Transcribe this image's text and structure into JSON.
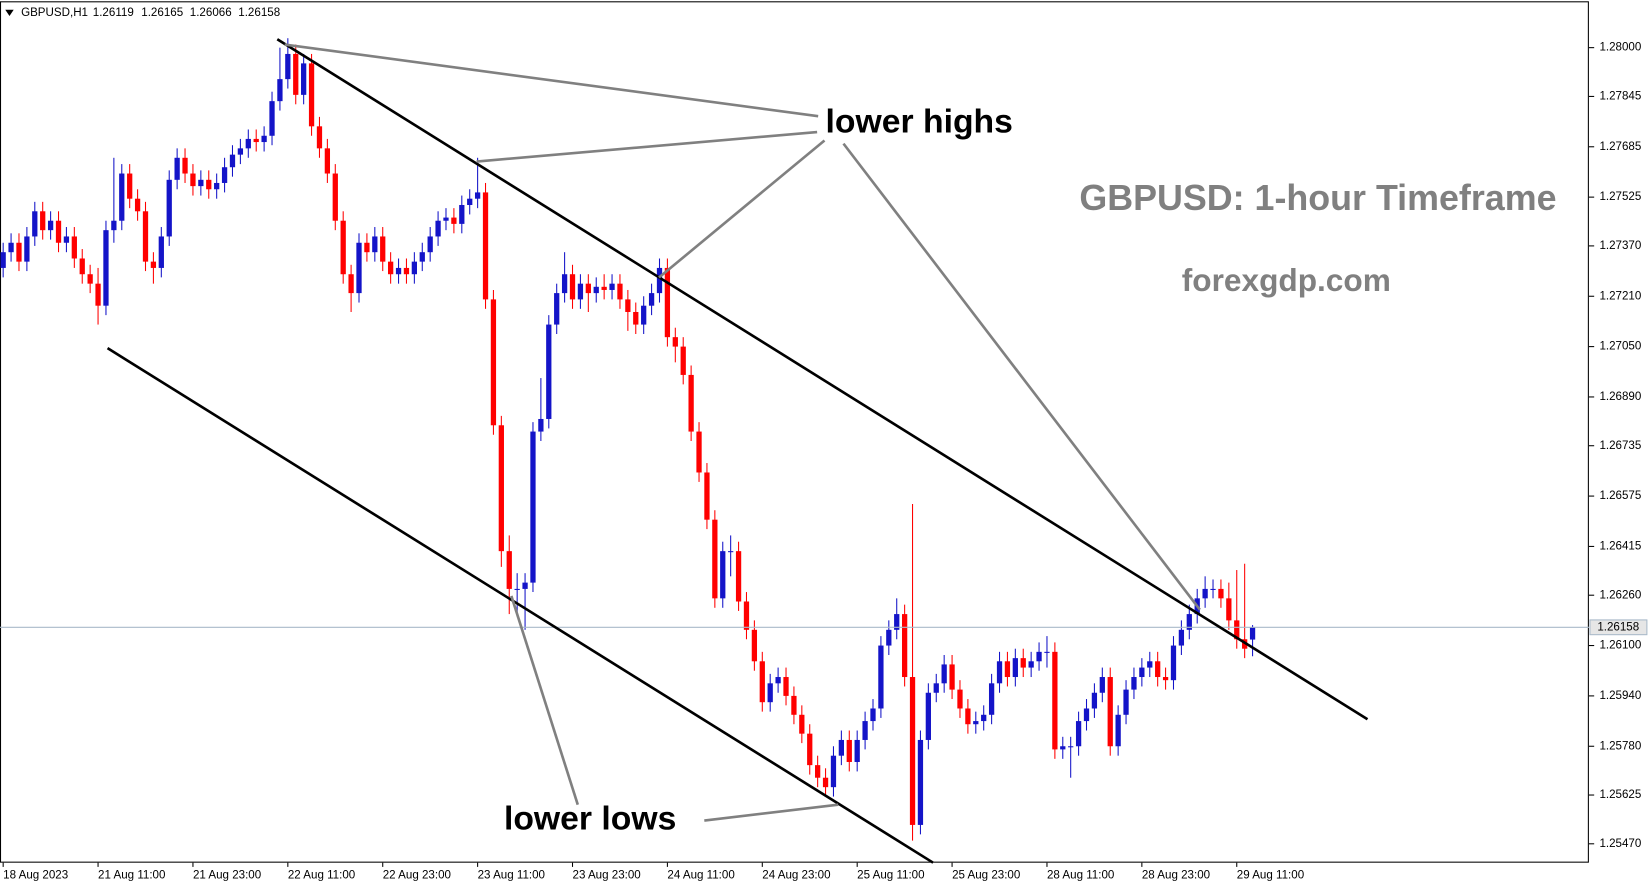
{
  "chart_data": {
    "type": "candlestick",
    "header_symbol": "GBPUSD,H1",
    "title": "GBPUSD: 1-hour Timeframe",
    "subtitle": "forexgdp.com",
    "annotations": [
      "lower highs",
      "lower lows"
    ],
    "up_color": "#1414c8",
    "down_color": "#ff0000",
    "last_price_color": "#a9b9c9",
    "ylim": [
      1.2541,
      1.28144
    ],
    "yticks": [
      {
        "value": 1.28,
        "label": "1.28000"
      },
      {
        "value": 1.27845,
        "label": "1.27845"
      },
      {
        "value": 1.27685,
        "label": "1.27685"
      },
      {
        "value": 1.27525,
        "label": "1.27525"
      },
      {
        "value": 1.2737,
        "label": "1.27370"
      },
      {
        "value": 1.2721,
        "label": "1.27210"
      },
      {
        "value": 1.2705,
        "label": "1.27050"
      },
      {
        "value": 1.2689,
        "label": "1.26890"
      },
      {
        "value": 1.26735,
        "label": "1.26735"
      },
      {
        "value": 1.26575,
        "label": "1.26575"
      },
      {
        "value": 1.26415,
        "label": "1.26415"
      },
      {
        "value": 1.2626,
        "label": "1.26260"
      },
      {
        "value": 1.261,
        "label": "1.26100"
      },
      {
        "value": 1.2594,
        "label": "1.25940"
      },
      {
        "value": 1.2578,
        "label": "1.25780"
      },
      {
        "value": 1.25625,
        "label": "1.25625"
      },
      {
        "value": 1.2547,
        "label": "1.25470"
      }
    ],
    "categories": [
      "18 Aug 2023",
      null,
      null,
      null,
      null,
      null,
      null,
      null,
      null,
      null,
      null,
      null,
      "21 Aug 11:00",
      null,
      null,
      null,
      null,
      null,
      null,
      null,
      null,
      null,
      null,
      null,
      "21 Aug 23:00",
      null,
      null,
      null,
      null,
      null,
      null,
      null,
      null,
      null,
      null,
      null,
      "22 Aug 11:00",
      null,
      null,
      null,
      null,
      null,
      null,
      null,
      null,
      null,
      null,
      null,
      "22 Aug 23:00",
      null,
      null,
      null,
      null,
      null,
      null,
      null,
      null,
      null,
      null,
      null,
      "23 Aug 11:00",
      null,
      null,
      null,
      null,
      null,
      null,
      null,
      null,
      null,
      null,
      null,
      "23 Aug 23:00",
      null,
      null,
      null,
      null,
      null,
      null,
      null,
      null,
      null,
      null,
      null,
      "24 Aug 11:00",
      null,
      null,
      null,
      null,
      null,
      null,
      null,
      null,
      null,
      null,
      null,
      "24 Aug 23:00",
      null,
      null,
      null,
      null,
      null,
      null,
      null,
      null,
      null,
      null,
      null,
      "25 Aug 11:00",
      null,
      null,
      null,
      null,
      null,
      null,
      null,
      null,
      null,
      null,
      null,
      "25 Aug 23:00",
      null,
      null,
      null,
      null,
      null,
      null,
      null,
      null,
      null,
      null,
      null,
      "28 Aug 11:00",
      null,
      null,
      null,
      null,
      null,
      null,
      null,
      null,
      null,
      null,
      null,
      "28 Aug 23:00",
      null,
      null,
      null,
      null,
      null,
      null,
      null,
      null,
      null,
      null,
      null,
      "29 Aug 11:00",
      null,
      null
    ],
    "ohlc": [
      [
        1.273,
        1.2738,
        1.2727,
        1.2735
      ],
      [
        1.2735,
        1.2741,
        1.2732,
        1.2738
      ],
      [
        1.2738,
        1.2741,
        1.2729,
        1.2732
      ],
      [
        1.2732,
        1.2743,
        1.2729,
        1.274
      ],
      [
        1.274,
        1.2751,
        1.2737,
        1.2748
      ],
      [
        1.2748,
        1.2751,
        1.2739,
        1.2742
      ],
      [
        1.2742,
        1.2748,
        1.2739,
        1.2745
      ],
      [
        1.2745,
        1.2748,
        1.2735,
        1.2738
      ],
      [
        1.2738,
        1.2743,
        1.2735,
        1.274
      ],
      [
        1.274,
        1.2743,
        1.273,
        1.2733
      ],
      [
        1.2733,
        1.2736,
        1.2725,
        1.2728
      ],
      [
        1.2728,
        1.2731,
        1.2722,
        1.2725
      ],
      [
        1.2725,
        1.273,
        1.2712,
        1.2718
      ],
      [
        1.2718,
        1.2745,
        1.2715,
        1.2742
      ],
      [
        1.2742,
        1.2765,
        1.2738,
        1.2745
      ],
      [
        1.2745,
        1.2763,
        1.2742,
        1.276
      ],
      [
        1.276,
        1.2763,
        1.2749,
        1.2752
      ],
      [
        1.2752,
        1.2755,
        1.2745,
        1.2748
      ],
      [
        1.2748,
        1.2751,
        1.2729,
        1.2732
      ],
      [
        1.2732,
        1.2735,
        1.2725,
        1.273
      ],
      [
        1.273,
        1.2743,
        1.2727,
        1.274
      ],
      [
        1.274,
        1.2761,
        1.2737,
        1.2758
      ],
      [
        1.2758,
        1.2768,
        1.2755,
        1.2765
      ],
      [
        1.2765,
        1.2768,
        1.2757,
        1.276
      ],
      [
        1.276,
        1.2763,
        1.2753,
        1.2756
      ],
      [
        1.2756,
        1.2761,
        1.2753,
        1.2758
      ],
      [
        1.2758,
        1.2761,
        1.2752,
        1.2755
      ],
      [
        1.2755,
        1.276,
        1.2752,
        1.2757
      ],
      [
        1.2757,
        1.2765,
        1.2754,
        1.2762
      ],
      [
        1.2762,
        1.2769,
        1.2759,
        1.2766
      ],
      [
        1.2766,
        1.2771,
        1.2763,
        1.2768
      ],
      [
        1.2768,
        1.2774,
        1.2765,
        1.2771
      ],
      [
        1.2771,
        1.2774,
        1.2767,
        1.277
      ],
      [
        1.277,
        1.2775,
        1.2767,
        1.2772
      ],
      [
        1.2772,
        1.2786,
        1.2769,
        1.2783
      ],
      [
        1.2783,
        1.28,
        1.278,
        1.279
      ],
      [
        1.279,
        1.2803,
        1.2787,
        1.2798
      ],
      [
        1.2798,
        1.2801,
        1.2782,
        1.2785
      ],
      [
        1.2785,
        1.2798,
        1.2782,
        1.2795
      ],
      [
        1.2795,
        1.2798,
        1.2772,
        1.2775
      ],
      [
        1.2775,
        1.2778,
        1.2765,
        1.2768
      ],
      [
        1.2768,
        1.2771,
        1.2757,
        1.276
      ],
      [
        1.276,
        1.2763,
        1.2742,
        1.2745
      ],
      [
        1.2745,
        1.2748,
        1.2725,
        1.2728
      ],
      [
        1.2728,
        1.2731,
        1.2716,
        1.2722
      ],
      [
        1.2722,
        1.2741,
        1.2719,
        1.2738
      ],
      [
        1.2738,
        1.2741,
        1.2732,
        1.2735
      ],
      [
        1.2735,
        1.2743,
        1.2732,
        1.274
      ],
      [
        1.274,
        1.2743,
        1.2729,
        1.2732
      ],
      [
        1.2732,
        1.2735,
        1.2725,
        1.2728
      ],
      [
        1.2728,
        1.2733,
        1.2725,
        1.273
      ],
      [
        1.273,
        1.2733,
        1.2725,
        1.2728
      ],
      [
        1.2728,
        1.2735,
        1.2725,
        1.2732
      ],
      [
        1.2732,
        1.2738,
        1.2729,
        1.2735
      ],
      [
        1.2735,
        1.2743,
        1.2732,
        1.274
      ],
      [
        1.274,
        1.2748,
        1.2737,
        1.2745
      ],
      [
        1.2745,
        1.2749,
        1.2742,
        1.2746
      ],
      [
        1.2746,
        1.2749,
        1.2741,
        1.2744
      ],
      [
        1.2744,
        1.2753,
        1.2741,
        1.275
      ],
      [
        1.275,
        1.2755,
        1.2747,
        1.2752
      ],
      [
        1.2752,
        1.2765,
        1.2749,
        1.2754
      ],
      [
        1.2754,
        1.2757,
        1.2717,
        1.272
      ],
      [
        1.272,
        1.2723,
        1.2677,
        1.268
      ],
      [
        1.268,
        1.2683,
        1.2635,
        1.264
      ],
      [
        1.264,
        1.2645,
        1.262,
        1.2628
      ],
      [
        1.2628,
        1.2633,
        1.262,
        1.2628
      ],
      [
        1.2628,
        1.2633,
        1.2615,
        1.263
      ],
      [
        1.263,
        1.2681,
        1.2627,
        1.2678
      ],
      [
        1.2678,
        1.2695,
        1.2675,
        1.2682
      ],
      [
        1.2682,
        1.2715,
        1.2679,
        1.2712
      ],
      [
        1.2712,
        1.2725,
        1.2709,
        1.2722
      ],
      [
        1.2722,
        1.2735,
        1.2719,
        1.2728
      ],
      [
        1.2728,
        1.2731,
        1.2717,
        1.272
      ],
      [
        1.272,
        1.2728,
        1.2717,
        1.2725
      ],
      [
        1.2725,
        1.2728,
        1.2716,
        1.2722
      ],
      [
        1.2722,
        1.2727,
        1.2719,
        1.2724
      ],
      [
        1.2724,
        1.2728,
        1.272,
        1.2723
      ],
      [
        1.2723,
        1.2728,
        1.272,
        1.2725
      ],
      [
        1.2725,
        1.2728,
        1.2717,
        1.272
      ],
      [
        1.272,
        1.2723,
        1.271,
        1.2716
      ],
      [
        1.2716,
        1.2719,
        1.2709,
        1.2712
      ],
      [
        1.2712,
        1.2721,
        1.2709,
        1.2718
      ],
      [
        1.2718,
        1.2725,
        1.2715,
        1.2722
      ],
      [
        1.2722,
        1.2733,
        1.2719,
        1.273
      ],
      [
        1.273,
        1.2733,
        1.2705,
        1.2708
      ],
      [
        1.2708,
        1.2711,
        1.27,
        1.2705
      ],
      [
        1.2705,
        1.2708,
        1.2693,
        1.2696
      ],
      [
        1.2696,
        1.2699,
        1.2675,
        1.2678
      ],
      [
        1.2678,
        1.2681,
        1.2662,
        1.2665
      ],
      [
        1.2665,
        1.2668,
        1.2647,
        1.265
      ],
      [
        1.265,
        1.2653,
        1.2622,
        1.2625
      ],
      [
        1.2625,
        1.2643,
        1.2622,
        1.264
      ],
      [
        1.264,
        1.2645,
        1.2632,
        1.264
      ],
      [
        1.264,
        1.2643,
        1.2621,
        1.2624
      ],
      [
        1.2624,
        1.2627,
        1.2612,
        1.2615
      ],
      [
        1.2615,
        1.2618,
        1.2602,
        1.2605
      ],
      [
        1.2605,
        1.2608,
        1.2589,
        1.2592
      ],
      [
        1.2592,
        1.2601,
        1.2589,
        1.2598
      ],
      [
        1.2598,
        1.2603,
        1.2595,
        1.26
      ],
      [
        1.26,
        1.2603,
        1.2591,
        1.2594
      ],
      [
        1.2594,
        1.2597,
        1.2585,
        1.2588
      ],
      [
        1.2588,
        1.2591,
        1.2579,
        1.2582
      ],
      [
        1.2582,
        1.2585,
        1.2569,
        1.2572
      ],
      [
        1.2572,
        1.2575,
        1.2565,
        1.2568
      ],
      [
        1.2568,
        1.2571,
        1.2562,
        1.2565
      ],
      [
        1.2565,
        1.2578,
        1.2562,
        1.2575
      ],
      [
        1.2575,
        1.2583,
        1.2572,
        1.258
      ],
      [
        1.258,
        1.2583,
        1.257,
        1.2573
      ],
      [
        1.2573,
        1.2583,
        1.257,
        1.258
      ],
      [
        1.258,
        1.2589,
        1.2577,
        1.2586
      ],
      [
        1.2586,
        1.2593,
        1.2583,
        1.259
      ],
      [
        1.259,
        1.2613,
        1.2587,
        1.261
      ],
      [
        1.261,
        1.2618,
        1.2607,
        1.2615
      ],
      [
        1.2615,
        1.2625,
        1.2612,
        1.262
      ],
      [
        1.262,
        1.2623,
        1.2597,
        1.26
      ],
      [
        1.26,
        1.2655,
        1.2548,
        1.2553
      ],
      [
        1.2553,
        1.2583,
        1.255,
        1.258
      ],
      [
        1.258,
        1.2598,
        1.2577,
        1.2595
      ],
      [
        1.2595,
        1.2601,
        1.2592,
        1.2598
      ],
      [
        1.2598,
        1.2607,
        1.2595,
        1.2604
      ],
      [
        1.2604,
        1.2607,
        1.2593,
        1.2596
      ],
      [
        1.2596,
        1.2599,
        1.2587,
        1.259
      ],
      [
        1.259,
        1.2593,
        1.2582,
        1.2585
      ],
      [
        1.2585,
        1.2589,
        1.2582,
        1.2586
      ],
      [
        1.2586,
        1.2591,
        1.2583,
        1.2588
      ],
      [
        1.2588,
        1.2601,
        1.2585,
        1.2598
      ],
      [
        1.2598,
        1.2608,
        1.2595,
        1.2605
      ],
      [
        1.2605,
        1.2608,
        1.2597,
        1.26
      ],
      [
        1.26,
        1.2609,
        1.2597,
        1.2606
      ],
      [
        1.2606,
        1.2609,
        1.26,
        1.2603
      ],
      [
        1.2603,
        1.2608,
        1.26,
        1.2605
      ],
      [
        1.2605,
        1.2611,
        1.2602,
        1.2608
      ],
      [
        1.2608,
        1.2613,
        1.2603,
        1.2608
      ],
      [
        1.2608,
        1.2611,
        1.2574,
        1.2577
      ],
      [
        1.2577,
        1.2581,
        1.2574,
        1.2578
      ],
      [
        1.2578,
        1.2581,
        1.2568,
        1.2578
      ],
      [
        1.2578,
        1.2589,
        1.2575,
        1.2586
      ],
      [
        1.2586,
        1.2593,
        1.2583,
        1.259
      ],
      [
        1.259,
        1.2598,
        1.2587,
        1.2595
      ],
      [
        1.2595,
        1.2603,
        1.2592,
        1.26
      ],
      [
        1.26,
        1.2603,
        1.2575,
        1.2578
      ],
      [
        1.2578,
        1.2591,
        1.2575,
        1.2588
      ],
      [
        1.2588,
        1.2599,
        1.2585,
        1.2596
      ],
      [
        1.2596,
        1.2603,
        1.2593,
        1.26
      ],
      [
        1.26,
        1.2606,
        1.2597,
        1.2603
      ],
      [
        1.2603,
        1.2608,
        1.26,
        1.2605
      ],
      [
        1.2605,
        1.2608,
        1.2597,
        1.26
      ],
      [
        1.26,
        1.2603,
        1.2596,
        1.2599
      ],
      [
        1.2599,
        1.2613,
        1.2596,
        1.261
      ],
      [
        1.261,
        1.2618,
        1.2607,
        1.2615
      ],
      [
        1.2615,
        1.2623,
        1.2612,
        1.262
      ],
      [
        1.262,
        1.2628,
        1.2617,
        1.2625
      ],
      [
        1.2625,
        1.2632,
        1.2622,
        1.2628
      ],
      [
        1.2628,
        1.2631,
        1.2625,
        1.2628
      ],
      [
        1.2628,
        1.2631,
        1.2622,
        1.2625
      ],
      [
        1.2625,
        1.263,
        1.2615,
        1.2618
      ],
      [
        1.2618,
        1.2634,
        1.2609,
        1.2612
      ],
      [
        1.2612,
        1.2636,
        1.2606,
        1.2609
      ],
      [
        1.26119,
        1.26165,
        1.26066,
        1.26158
      ]
    ]
  }
}
